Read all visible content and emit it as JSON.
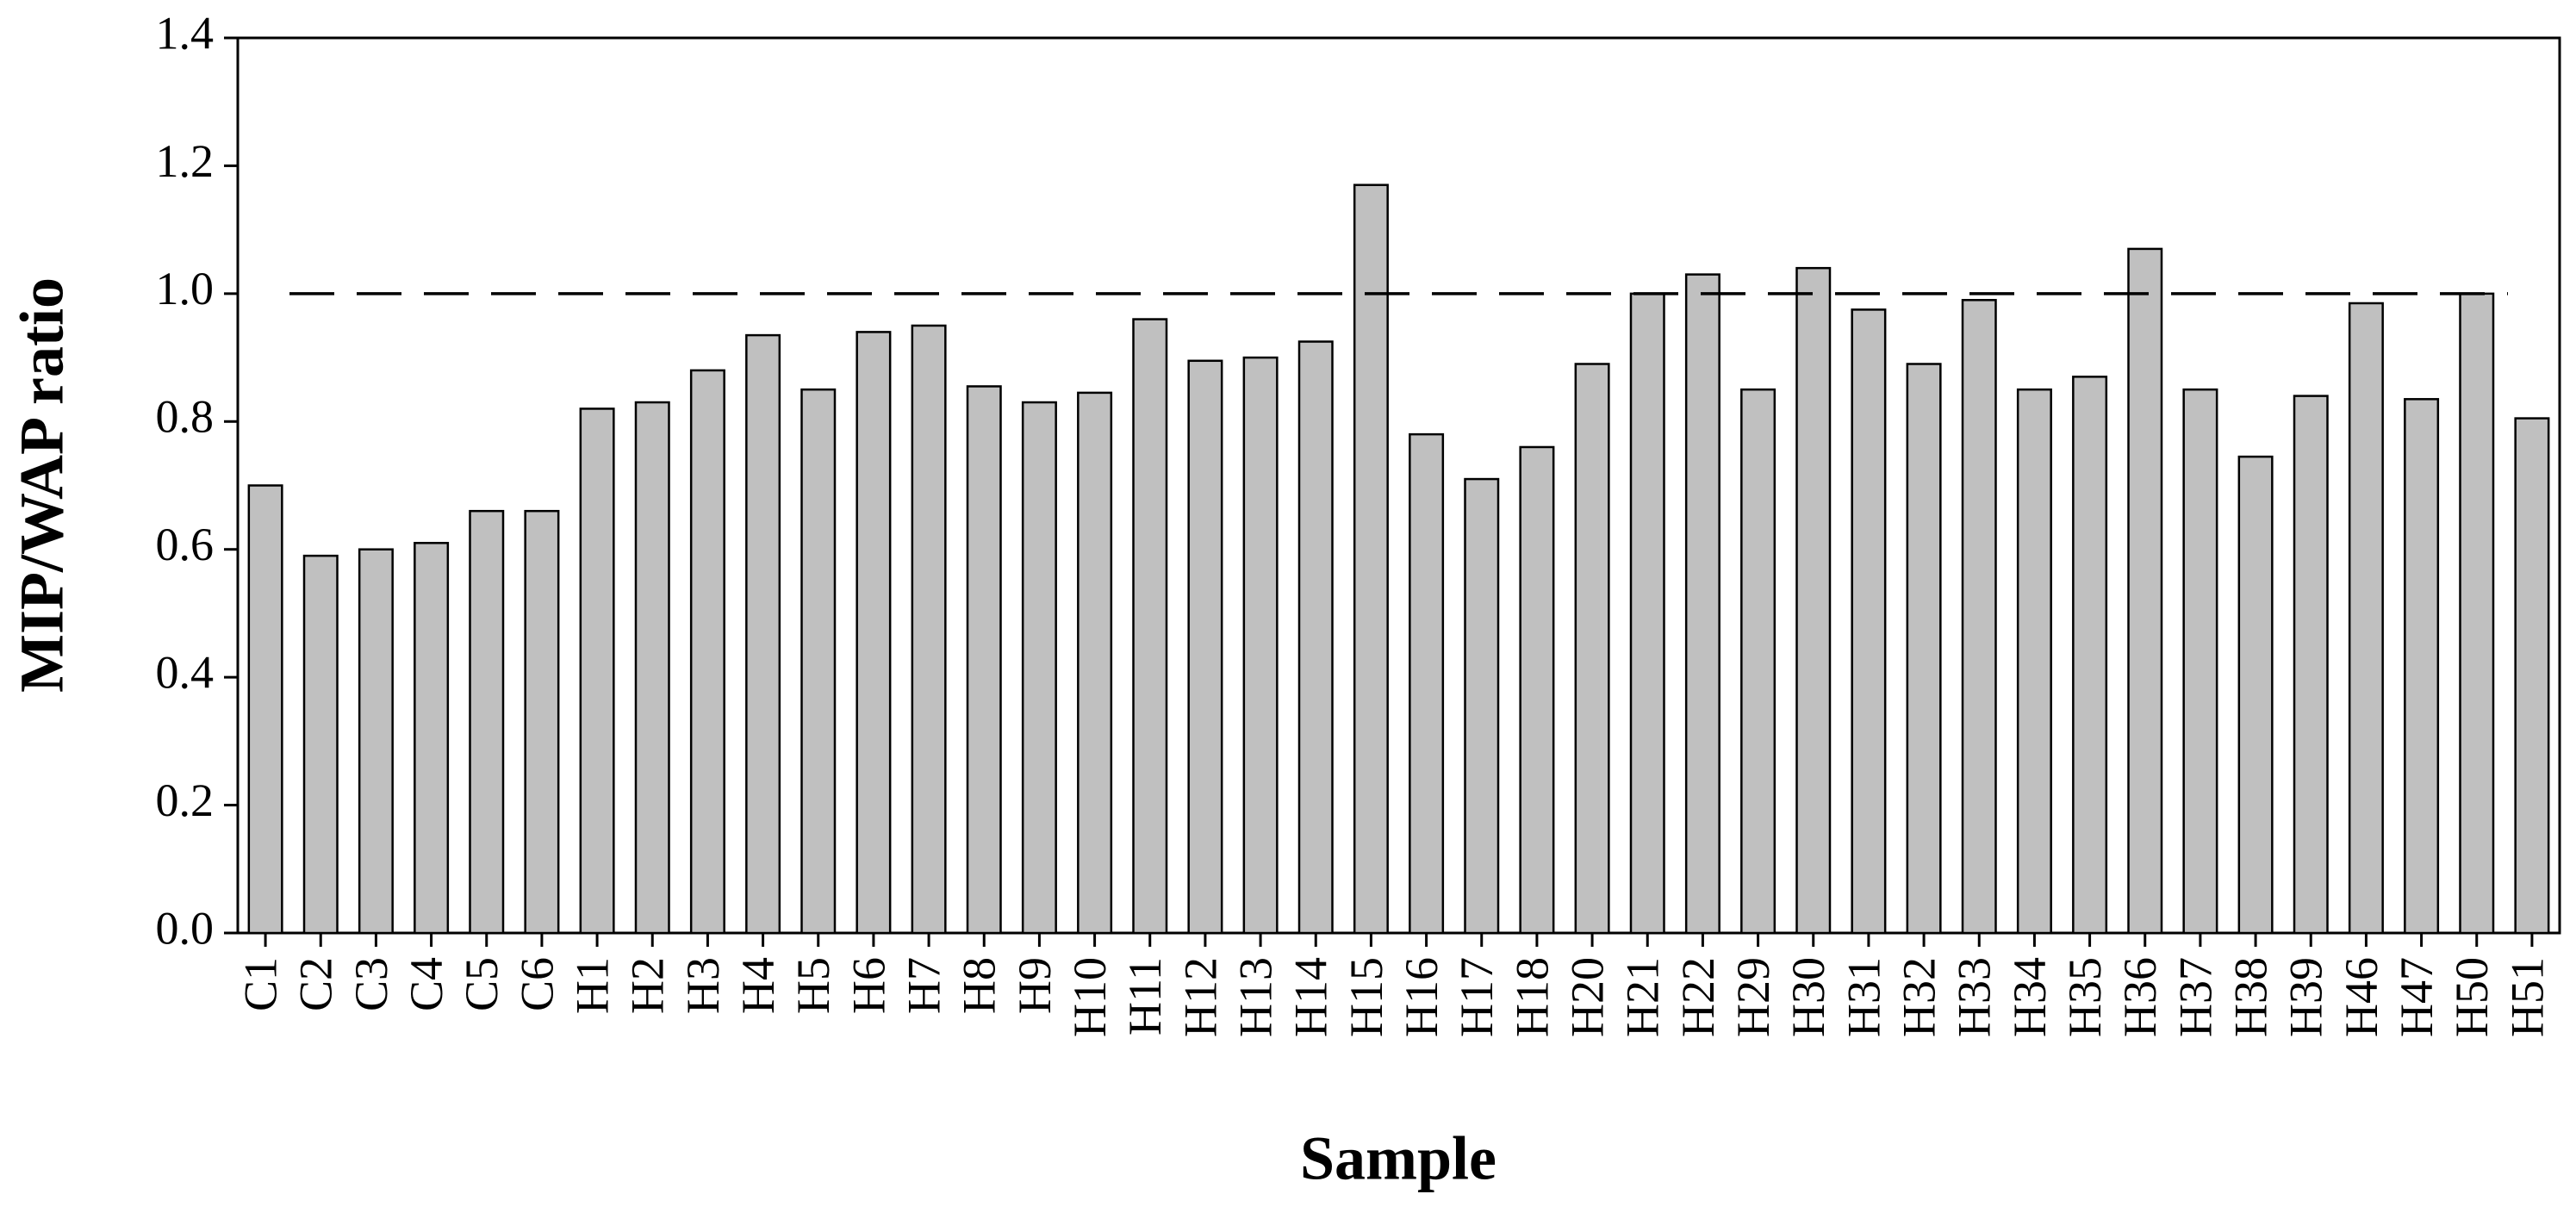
{
  "chart_data": {
    "type": "bar",
    "x_label": "Sample",
    "y_label": "MIP/WAP ratio",
    "categories": [
      "C1",
      "C2",
      "C3",
      "C4",
      "C5",
      "C6",
      "H1",
      "H2",
      "H3",
      "H4",
      "H5",
      "H6",
      "H7",
      "H8",
      "H9",
      "H10",
      "H11",
      "H12",
      "H13",
      "H14",
      "H15",
      "H16",
      "H17",
      "H18",
      "H20",
      "H21",
      "H22",
      "H29",
      "H30",
      "H31",
      "H32",
      "H33",
      "H34",
      "H35",
      "H36",
      "H37",
      "H38",
      "H39",
      "H46",
      "H47",
      "H50",
      "H51"
    ],
    "values": [
      0.7,
      0.59,
      0.6,
      0.61,
      0.66,
      0.66,
      0.82,
      0.83,
      0.88,
      0.935,
      0.85,
      0.94,
      0.95,
      0.855,
      0.83,
      0.845,
      0.96,
      0.895,
      0.9,
      0.925,
      1.17,
      0.78,
      0.71,
      0.76,
      0.89,
      1.0,
      1.03,
      0.85,
      1.04,
      0.975,
      0.89,
      0.99,
      0.85,
      0.87,
      1.07,
      0.85,
      0.745,
      0.84,
      0.985,
      0.835,
      1.0,
      0.805
    ],
    "color": "#c0c0c0",
    "ylim": [
      0,
      1.4
    ],
    "yticks": [
      {
        "value": 0,
        "label": "0.0"
      },
      {
        "value": 0.2,
        "label": "0.2"
      },
      {
        "value": 0.4,
        "label": "0.4"
      },
      {
        "value": 0.6,
        "label": "0.6"
      },
      {
        "value": 0.8,
        "label": "0.8"
      },
      {
        "value": 1.0,
        "label": "1.0"
      },
      {
        "value": 1.2,
        "label": "1.2"
      },
      {
        "value": 1.4,
        "label": "1.4"
      }
    ],
    "reference_line": 1.0,
    "grid": false
  }
}
